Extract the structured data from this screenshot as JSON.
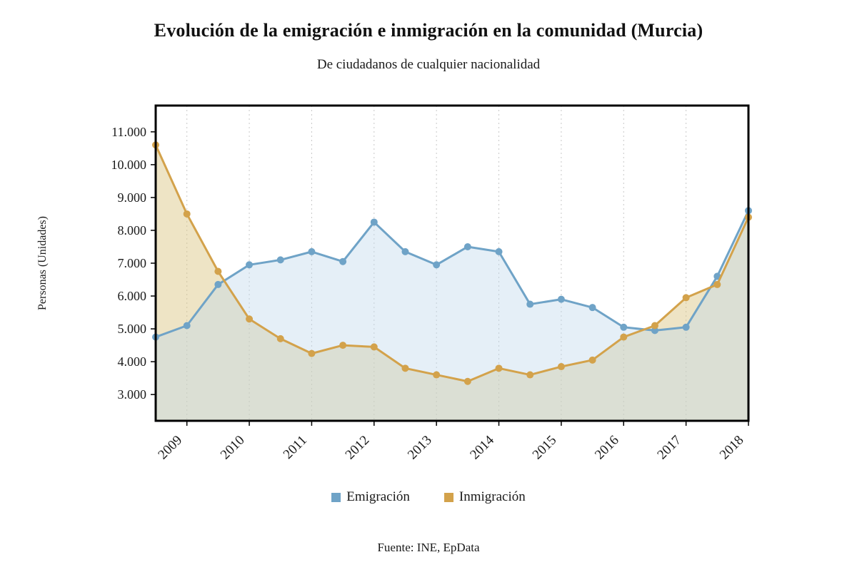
{
  "header": {
    "title": "Evolución de la emigración e inmigración en la comunidad (Murcia)",
    "subtitle": "De ciudadanos de cualquier nacionalidad"
  },
  "footer": {
    "source": "Fuente: INE, EpData"
  },
  "chart_data": {
    "type": "line",
    "title": "Evolución de la emigración e inmigración en la comunidad (Murcia)",
    "subtitle": "De ciudadanos de cualquier nacionalidad",
    "ylabel": "Personas (Unidades)",
    "xlabel": "",
    "x_year_labels": [
      "2009",
      "2010",
      "2011",
      "2012",
      "2013",
      "2014",
      "2015",
      "2016",
      "2017",
      "2018"
    ],
    "points_per_year": 2,
    "y_ticks": [
      3000,
      4000,
      5000,
      6000,
      7000,
      8000,
      9000,
      10000,
      11000
    ],
    "y_tick_labels": [
      "3.000",
      "4.000",
      "5.000",
      "6.000",
      "7.000",
      "8.000",
      "9.000",
      "10.000",
      "11.000"
    ],
    "ylim": [
      2200,
      11800
    ],
    "grid": "vertical-dotted",
    "legend_position": "bottom",
    "series": [
      {
        "name": "Emigración",
        "color": "#6fa3c7",
        "fill": "#bdd7ea",
        "fill_opacity": 0.4,
        "values": [
          4750,
          5100,
          6350,
          6950,
          7100,
          7350,
          7050,
          8250,
          7350,
          6950,
          7500,
          7350,
          5750,
          5900,
          5650,
          5050,
          4950,
          5050,
          6600,
          8600
        ]
      },
      {
        "name": "Inmigración",
        "color": "#d3a24b",
        "fill": "#d9c47e",
        "fill_opacity": 0.45,
        "values": [
          10600,
          8500,
          6750,
          5300,
          4700,
          4250,
          4500,
          4450,
          3800,
          3600,
          3400,
          3800,
          3600,
          3850,
          4050,
          4750,
          5100,
          5950,
          6350,
          8400
        ]
      }
    ]
  }
}
